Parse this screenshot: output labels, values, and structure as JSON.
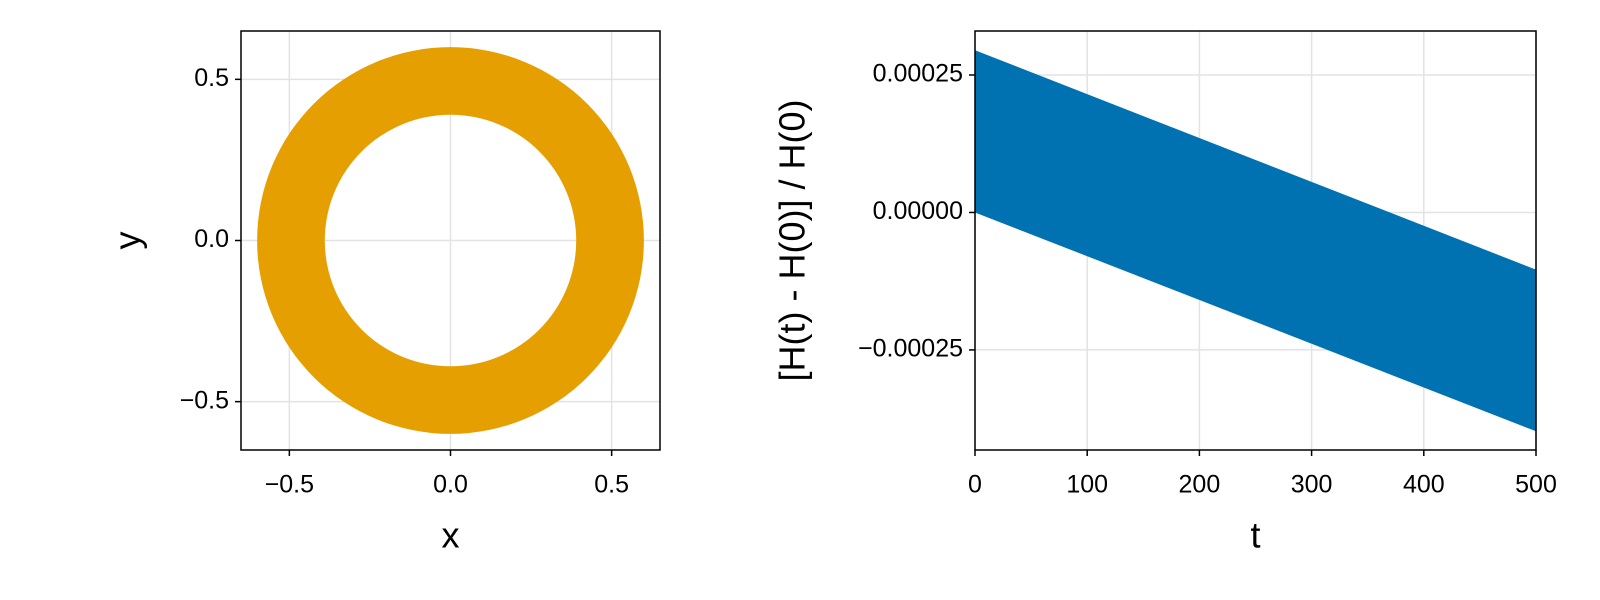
{
  "chart_data": [
    {
      "type": "ring",
      "x_label": "x",
      "y_label": "y",
      "r_inner": 0.39,
      "r_outer": 0.6,
      "color": "#e69f00",
      "xlim": [
        -0.65,
        0.65
      ],
      "ylim": [
        -0.65,
        0.65
      ],
      "xticks": [
        {
          "value": -0.5,
          "label": "−0.5"
        },
        {
          "value": 0,
          "label": "0.0"
        },
        0.5
      ],
      "yticks": [
        {
          "value": -0.5,
          "label": "−0.5"
        },
        {
          "value": 0,
          "label": "0.0"
        },
        0.5
      ],
      "grid": true
    },
    {
      "type": "band",
      "x_label": "t",
      "y_label": "[H(t) - H(0)] / H(0)",
      "x": [
        0,
        500
      ],
      "upper": [
        0.000295,
        -0.000104
      ],
      "lower": [
        0,
        -0.000398
      ],
      "color": "#0072b2",
      "xlim": [
        0,
        500
      ],
      "ylim": [
        -0.000432,
        0.00033
      ],
      "xticks": [
        0,
        100,
        200,
        300,
        400,
        500
      ],
      "yticks": [
        {
          "value": -0.00025,
          "label": "−0.00025"
        },
        {
          "value": 0,
          "label": "0.00000"
        },
        0.00025
      ],
      "grid": true
    }
  ]
}
